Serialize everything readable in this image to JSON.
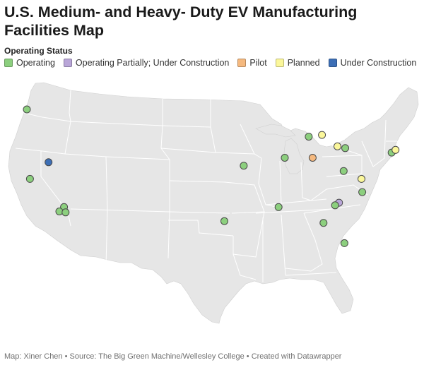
{
  "title": "U.S. Medium- and Heavy- Duty EV Manufacturing Facilities Map",
  "legend": {
    "title": "Operating Status",
    "items": [
      {
        "label": "Operating",
        "color": "#8ccf7e"
      },
      {
        "label": "Operating Partially; Under Construction",
        "color": "#b9a6d8"
      },
      {
        "label": "Pilot",
        "color": "#f5b97f"
      },
      {
        "label": "Planned",
        "color": "#fbf79b"
      },
      {
        "label": "Under Construction",
        "color": "#3d6fb6"
      }
    ]
  },
  "map": {
    "land_color": "#e6e6e6",
    "border_color": "#ffffff",
    "facilities": [
      {
        "status": "Operating",
        "lon": -122.6,
        "lat": 45.5
      },
      {
        "status": "Under Construction",
        "lon": -119.8,
        "lat": 39.5
      },
      {
        "status": "Operating",
        "lon": -122.2,
        "lat": 37.6
      },
      {
        "status": "Operating",
        "lon": -117.8,
        "lat": 34.4
      },
      {
        "status": "Operating",
        "lon": -118.4,
        "lat": 33.9
      },
      {
        "status": "Operating",
        "lon": -117.6,
        "lat": 33.8
      },
      {
        "status": "Operating",
        "lon": -97.1,
        "lat": 32.8
      },
      {
        "status": "Operating",
        "lon": -94.6,
        "lat": 39.1
      },
      {
        "status": "Operating",
        "lon": -89.3,
        "lat": 40.0
      },
      {
        "status": "Operating",
        "lon": -90.1,
        "lat": 34.4
      },
      {
        "status": "Operating",
        "lon": -86.2,
        "lat": 42.4
      },
      {
        "status": "Planned",
        "lon": -84.5,
        "lat": 42.6
      },
      {
        "status": "Pilot",
        "lon": -85.7,
        "lat": 40.0
      },
      {
        "status": "Planned",
        "lon": -82.5,
        "lat": 41.3
      },
      {
        "status": "Operating",
        "lon": -81.5,
        "lat": 41.1
      },
      {
        "status": "Operating",
        "lon": -81.7,
        "lat": 38.5
      },
      {
        "status": "Planned",
        "lon": -79.4,
        "lat": 37.6
      },
      {
        "status": "Operating",
        "lon": -79.3,
        "lat": 36.1
      },
      {
        "status": "Operating Partially; Under Construction",
        "lon": -82.3,
        "lat": 34.9
      },
      {
        "status": "Operating",
        "lon": -82.8,
        "lat": 34.6
      },
      {
        "status": "Operating",
        "lon": -84.3,
        "lat": 32.6
      },
      {
        "status": "Operating",
        "lon": -81.6,
        "lat": 30.3
      },
      {
        "status": "Operating",
        "lon": -75.5,
        "lat": 40.6
      },
      {
        "status": "Planned",
        "lon": -75.0,
        "lat": 40.9
      }
    ]
  },
  "footer": "Map: Xiner Chen • Source: The Big Green Machine/Wellesley College • Created with Datawrapper"
}
